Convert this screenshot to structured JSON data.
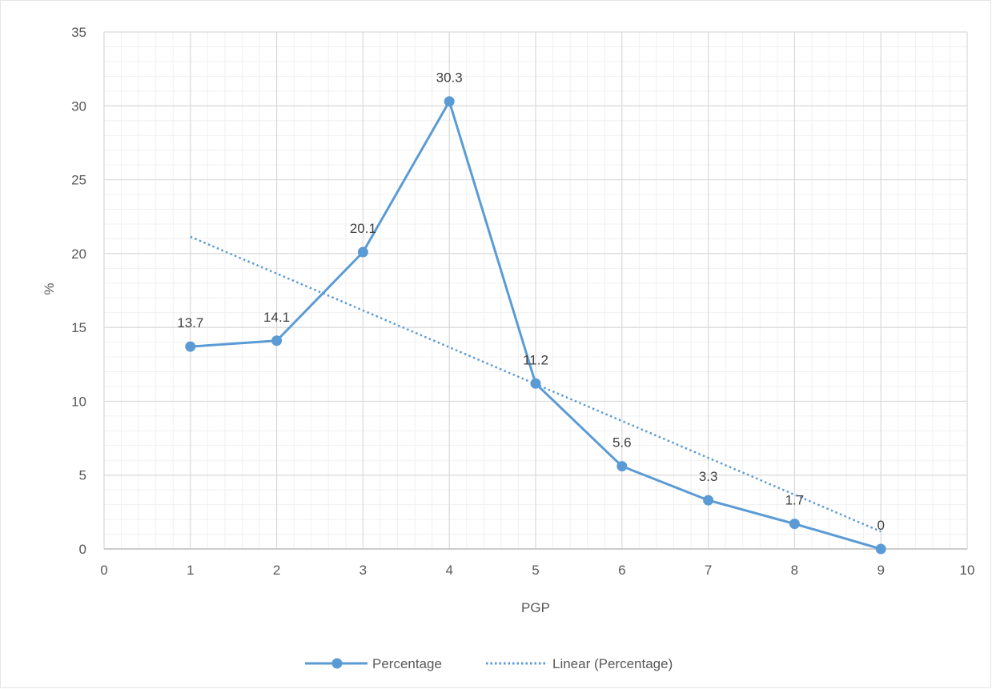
{
  "chart_data": {
    "type": "line",
    "title": "",
    "xlabel": "PGP",
    "ylabel": "%",
    "xlim": [
      0,
      10
    ],
    "ylim": [
      0,
      35
    ],
    "x_ticks": [
      0,
      1,
      2,
      3,
      4,
      5,
      6,
      7,
      8,
      9,
      10
    ],
    "y_ticks": [
      0,
      5,
      10,
      15,
      20,
      25,
      30,
      35
    ],
    "grid": "major and minor",
    "legend_position": "bottom",
    "series": [
      {
        "name": "Percentage",
        "style": "solid line with circle markers",
        "color": "#5b9bd5",
        "x": [
          1,
          2,
          3,
          4,
          5,
          6,
          7,
          8,
          9
        ],
        "y": [
          13.7,
          14.1,
          20.1,
          30.3,
          11.2,
          5.6,
          3.3,
          1.7,
          0
        ],
        "data_labels": [
          "13.7",
          "14.1",
          "20.1",
          "30.3",
          "11.2",
          "5.6",
          "3.3",
          "1.7",
          "0"
        ]
      },
      {
        "name": "Linear (Percentage)",
        "style": "dotted trendline",
        "color": "#5b9bd5",
        "x": [
          1,
          9
        ],
        "y": [
          21.14,
          1.18
        ]
      }
    ]
  }
}
